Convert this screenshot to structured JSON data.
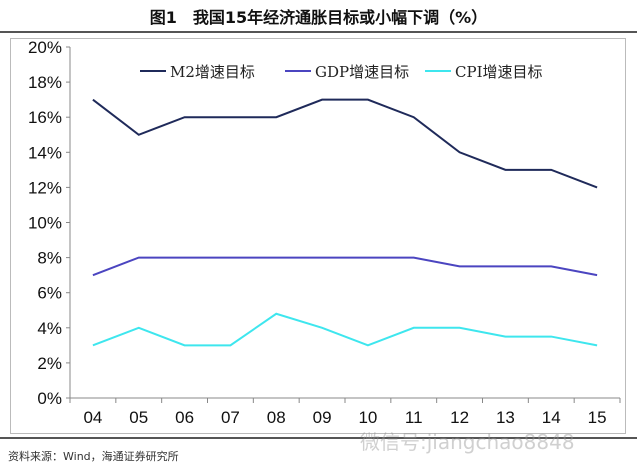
{
  "title": "图1　我国15年经济通胀目标或小幅下调（%）",
  "source": "资料来源：Wind，海通证券研究所",
  "watermark": "微信号:jiangchao8848",
  "chart_data": {
    "type": "line",
    "title": "图1　我国15年经济通胀目标或小幅下调（%）",
    "categories": [
      "04",
      "05",
      "06",
      "07",
      "08",
      "09",
      "10",
      "11",
      "12",
      "13",
      "14",
      "15"
    ],
    "ylim": [
      0,
      20
    ],
    "yticks": [
      "0%",
      "2%",
      "4%",
      "6%",
      "8%",
      "10%",
      "12%",
      "14%",
      "16%",
      "18%",
      "20%"
    ],
    "grid": false,
    "legend": "top",
    "series": [
      {
        "name": "M2增速目标",
        "color": "#1f2a5a",
        "values": [
          17,
          15,
          16,
          16,
          16,
          17,
          17,
          16,
          14,
          13,
          13,
          12
        ]
      },
      {
        "name": "GDP增速目标",
        "color": "#4b45c0",
        "values": [
          7,
          8,
          8,
          8,
          8,
          8,
          8,
          8,
          7.5,
          7.5,
          7.5,
          7
        ]
      },
      {
        "name": "CPI增速目标",
        "color": "#3ee6ee",
        "values": [
          3,
          4,
          3,
          3,
          4.8,
          4,
          3,
          4,
          4,
          3.5,
          3.5,
          3
        ]
      }
    ]
  }
}
